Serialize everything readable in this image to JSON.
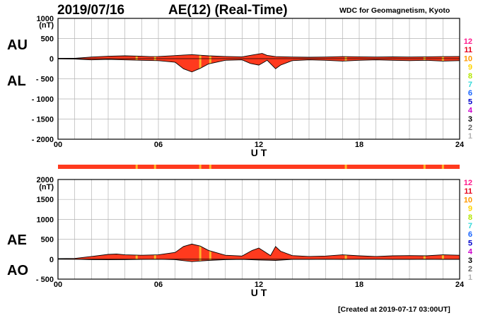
{
  "header": {
    "date": "2019/07/16",
    "title": "AE(12) (Real-Time)",
    "source": "WDC for Geomagnetism, Kyoto"
  },
  "footer": {
    "created": "[Created at 2019-07-17 03:00UT]"
  },
  "colors": {
    "fill_main": "#ff3a1e",
    "fill_highlight": "#ffb62a",
    "grid": "#b3b3b3",
    "station_counts": {
      "12": "#ff1a8c",
      "11": "#e6001a",
      "10": "#ff9900",
      "9": "#ffd500",
      "8": "#b3e600",
      "7": "#33d9d9",
      "6": "#1a66ff",
      "5": "#0000cc",
      "4": "#cc00cc",
      "3": "#000000",
      "2": "#666666",
      "1": "#b3b3b3"
    }
  },
  "legend_counts": [
    "12",
    "11",
    "10",
    "9",
    "8",
    "7",
    "6",
    "5",
    "4",
    "3",
    "2",
    "1"
  ],
  "chart_data": [
    {
      "type": "area",
      "name": "AU/AL",
      "labels": {
        "upper": "AU",
        "lower": "AL"
      },
      "xlabel": "U T",
      "ylabel_unit": "(nT)",
      "xticks": [
        "00",
        "06",
        "12",
        "18",
        "24"
      ],
      "xlim": [
        0,
        24
      ],
      "ylim": [
        -2000,
        1000
      ],
      "yticks": [
        1000,
        500,
        0,
        -500,
        -1000,
        -1500,
        -2000
      ],
      "ytick_labels": [
        "1000",
        "500",
        "0",
        "- 500",
        "- 1000",
        "- 1500",
        "- 2000"
      ],
      "grid": true,
      "series": [
        {
          "name": "AU",
          "points": [
            [
              0,
              10
            ],
            [
              1,
              10
            ],
            [
              1.3,
              20
            ],
            [
              2,
              40
            ],
            [
              3,
              60
            ],
            [
              4,
              70
            ],
            [
              5,
              60
            ],
            [
              5.5,
              50
            ],
            [
              6,
              55
            ],
            [
              6.5,
              65
            ],
            [
              7,
              75
            ],
            [
              7.5,
              90
            ],
            [
              8,
              100
            ],
            [
              8.5,
              85
            ],
            [
              9,
              70
            ],
            [
              10,
              55
            ],
            [
              11,
              45
            ],
            [
              11.6,
              90
            ],
            [
              12.2,
              130
            ],
            [
              12.5,
              80
            ],
            [
              13,
              50
            ],
            [
              14,
              40
            ],
            [
              15,
              35
            ],
            [
              16,
              40
            ],
            [
              17,
              50
            ],
            [
              18,
              45
            ],
            [
              19,
              40
            ],
            [
              20,
              45
            ],
            [
              21,
              40
            ],
            [
              22,
              45
            ],
            [
              23,
              50
            ],
            [
              24,
              55
            ]
          ]
        },
        {
          "name": "AL",
          "points": [
            [
              0,
              -5
            ],
            [
              1,
              -10
            ],
            [
              2,
              -30
            ],
            [
              3,
              -20
            ],
            [
              4,
              -30
            ],
            [
              5,
              -40
            ],
            [
              6,
              -50
            ],
            [
              7,
              -90
            ],
            [
              7.5,
              -250
            ],
            [
              8,
              -330
            ],
            [
              8.5,
              -240
            ],
            [
              9,
              -130
            ],
            [
              10,
              -40
            ],
            [
              11,
              -30
            ],
            [
              11.5,
              -120
            ],
            [
              12,
              -160
            ],
            [
              12.3,
              -90
            ],
            [
              12.5,
              -40
            ],
            [
              13,
              -250
            ],
            [
              13.3,
              -160
            ],
            [
              14,
              -50
            ],
            [
              15,
              -30
            ],
            [
              16,
              -40
            ],
            [
              17,
              -60
            ],
            [
              18,
              -40
            ],
            [
              19,
              -30
            ],
            [
              20,
              -40
            ],
            [
              21,
              -50
            ],
            [
              22,
              -40
            ],
            [
              23,
              -60
            ],
            [
              24,
              -50
            ]
          ]
        }
      ],
      "highlights_ut": [
        4.7,
        5.8,
        8.5,
        9.1,
        17.2,
        21.9,
        23.0
      ]
    },
    {
      "type": "area",
      "name": "AE/AO",
      "labels": {
        "upper": "AE",
        "lower": "AO"
      },
      "xlabel": "U T",
      "ylabel_unit": "(nT)",
      "xticks": [
        "00",
        "06",
        "12",
        "18",
        "24"
      ],
      "xlim": [
        0,
        24
      ],
      "ylim": [
        -500,
        2000
      ],
      "yticks": [
        2000,
        1500,
        1000,
        500,
        0,
        -500
      ],
      "ytick_labels": [
        "2000",
        "1500",
        "1000",
        "500",
        "0",
        "- 500"
      ],
      "grid": true,
      "series": [
        {
          "name": "AE",
          "points": [
            [
              0,
              15
            ],
            [
              1,
              20
            ],
            [
              2,
              70
            ],
            [
              3,
              120
            ],
            [
              3.5,
              130
            ],
            [
              4,
              110
            ],
            [
              5,
              100
            ],
            [
              6,
              110
            ],
            [
              7,
              170
            ],
            [
              7.5,
              320
            ],
            [
              8,
              380
            ],
            [
              8.5,
              330
            ],
            [
              9,
              220
            ],
            [
              10,
              100
            ],
            [
              11,
              80
            ],
            [
              11.6,
              220
            ],
            [
              12,
              280
            ],
            [
              12.3,
              200
            ],
            [
              12.7,
              90
            ],
            [
              13,
              320
            ],
            [
              13.3,
              200
            ],
            [
              14,
              90
            ],
            [
              15,
              70
            ],
            [
              16,
              80
            ],
            [
              17,
              110
            ],
            [
              18,
              85
            ],
            [
              19,
              70
            ],
            [
              20,
              85
            ],
            [
              21,
              90
            ],
            [
              22,
              85
            ],
            [
              23,
              110
            ],
            [
              24,
              100
            ]
          ]
        },
        {
          "name": "AO",
          "points": [
            [
              0,
              5
            ],
            [
              1,
              0
            ],
            [
              2,
              -10
            ],
            [
              3,
              -15
            ],
            [
              4,
              -10
            ],
            [
              5,
              -5
            ],
            [
              6,
              0
            ],
            [
              7,
              -10
            ],
            [
              8,
              -60
            ],
            [
              9,
              -30
            ],
            [
              10,
              -10
            ],
            [
              11,
              -5
            ],
            [
              12,
              -20
            ],
            [
              13,
              -30
            ],
            [
              14,
              -5
            ],
            [
              15,
              -5
            ],
            [
              16,
              0
            ],
            [
              17,
              -5
            ],
            [
              18,
              0
            ],
            [
              19,
              0
            ],
            [
              20,
              -5
            ],
            [
              21,
              -5
            ],
            [
              22,
              0
            ],
            [
              23,
              -5
            ],
            [
              24,
              -3
            ]
          ]
        }
      ],
      "highlights_ut": [
        4.7,
        5.8,
        8.5,
        9.1,
        17.2,
        21.9,
        23.0
      ]
    }
  ]
}
